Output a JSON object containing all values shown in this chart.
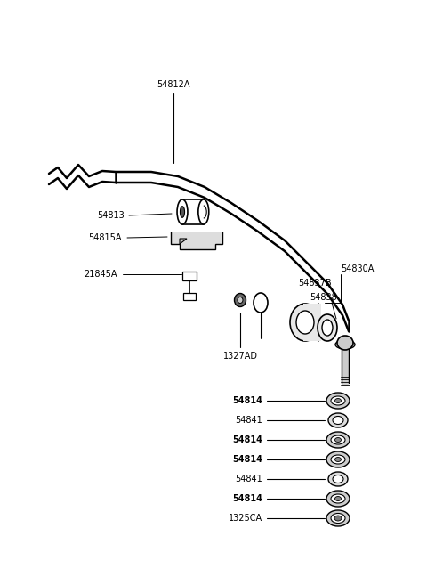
{
  "background": "#ffffff",
  "line_color": "#000000",
  "label_fontsize": 7.0,
  "figsize": [
    4.8,
    6.57
  ],
  "dpi": 100,
  "part_labels": [
    "54814",
    "54841",
    "54814",
    "54814",
    "54841",
    "54814",
    "1325CA"
  ],
  "part_bold": [
    true,
    false,
    true,
    true,
    false,
    true,
    false
  ]
}
